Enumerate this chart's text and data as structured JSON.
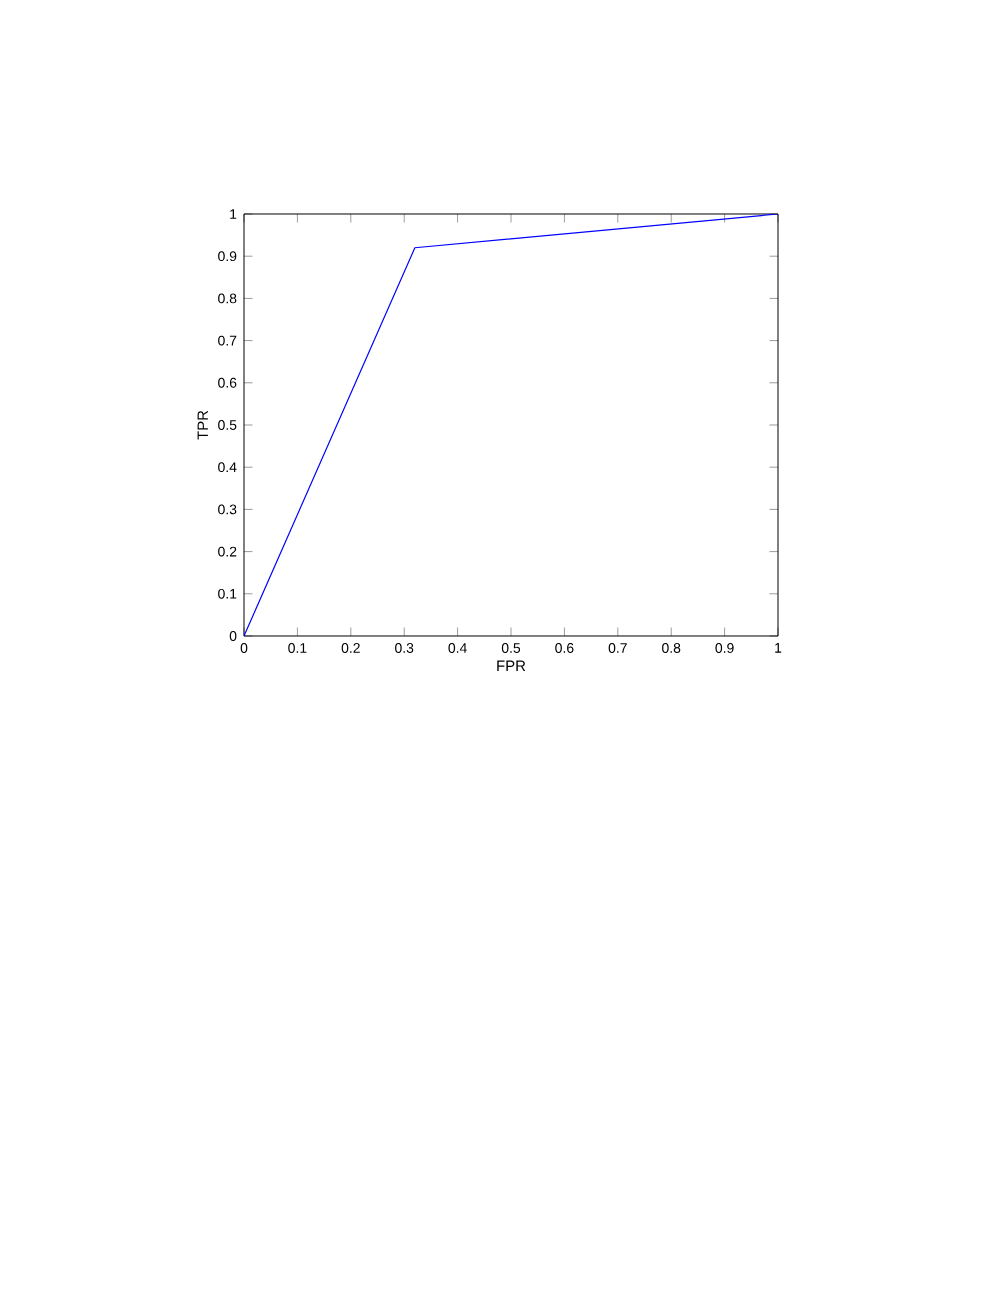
{
  "chart_data": {
    "type": "line",
    "xlabel": "FPR",
    "ylabel": "TPR",
    "x": [
      0,
      0.32,
      1
    ],
    "series": [
      {
        "color": "#0000ff",
        "values": [
          0,
          0.92,
          1
        ]
      }
    ],
    "xlim": [
      0,
      1
    ],
    "ylim": [
      0,
      1
    ],
    "xticks": [
      0,
      0.1,
      0.2,
      0.3,
      0.4,
      0.5,
      0.6,
      0.7,
      0.8,
      0.9,
      1
    ],
    "yticks": [
      0,
      0.1,
      0.2,
      0.3,
      0.4,
      0.5,
      0.6,
      0.7,
      0.8,
      0.9,
      1
    ],
    "marker": "none",
    "line_style": "solid"
  }
}
